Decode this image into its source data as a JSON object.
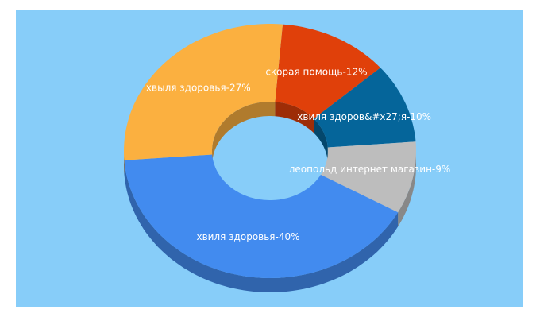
{
  "chart_data": {
    "type": "donut3d",
    "values": [
      12,
      10,
      9,
      40,
      27
    ],
    "value_labels": [
      "скорая помощь-12%",
      "хвиля здоров&#x27;я-10%",
      "леопольд интернет магазин-9%",
      "хвиля здоровья-40%",
      "хвыля здоровья-27%"
    ],
    "colors": [
      "#e0400a",
      "#05659a",
      "#bdbdbd",
      "#428bef",
      "#fbb040"
    ]
  }
}
